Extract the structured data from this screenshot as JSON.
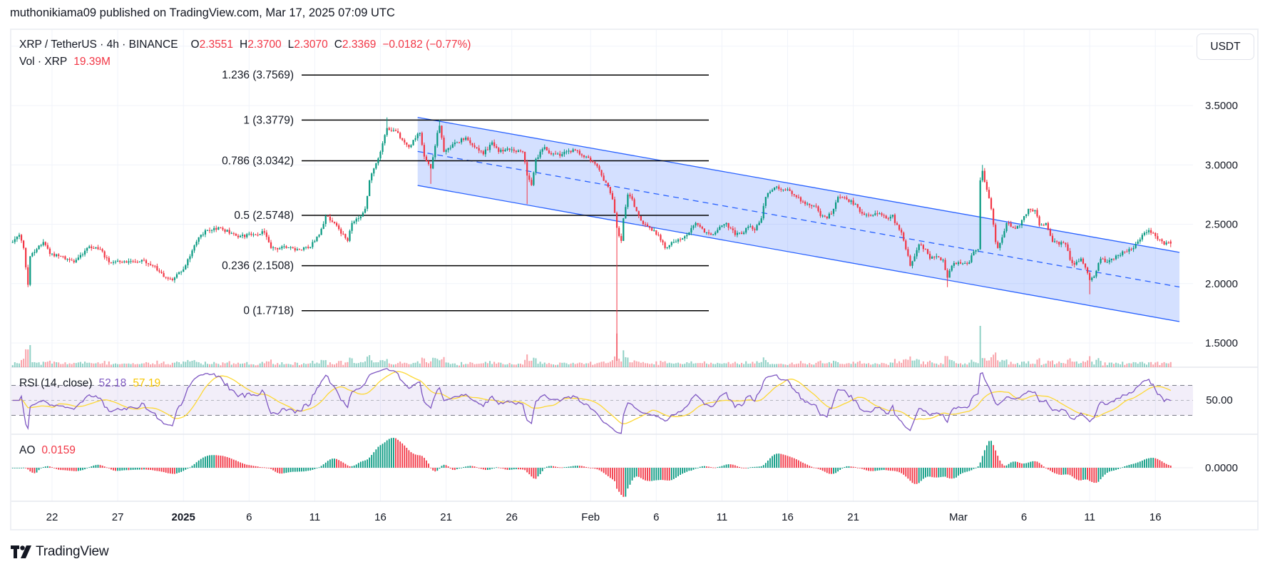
{
  "published": "muthonikiama09 published on TradingView.com, Mar 17, 2025 07:09 UTC",
  "legend": {
    "symbol": "XRP / TetherUS · 4h · BINANCE",
    "o_label": "O",
    "o": "2.3551",
    "h_label": "H",
    "h": "2.3700",
    "l_label": "L",
    "l": "2.3070",
    "c_label": "C",
    "c": "2.3369",
    "change": "−0.0182 (−0.77%)",
    "vol_label": "Vol · XRP",
    "vol": "19.39M"
  },
  "currency_button": "USDT",
  "rsi": {
    "label": "RSI (14, close)",
    "value": "52.18",
    "ma_value": "57.19",
    "axis_label": "50.00"
  },
  "ao": {
    "label": "AO",
    "value": "0.0159",
    "axis_label": "0.0000"
  },
  "footer": {
    "brand": "TradingView"
  },
  "colors": {
    "up": "#089981",
    "down": "#f23645",
    "channel": "#2962ff",
    "rsi": "#7e57c2",
    "rsi_ma": "#fdd835",
    "text": "#131722",
    "grid": "#f0f3fa"
  },
  "chart_data": {
    "type": "candlestick",
    "interval": "4h",
    "scale": "linear",
    "grid": true,
    "price_ticks": [
      {
        "label": "3.5000",
        "value": 3.5
      },
      {
        "label": "3.0000",
        "value": 3.0
      },
      {
        "label": "2.5000",
        "value": 2.5
      },
      {
        "label": "2.0000",
        "value": 2.0
      },
      {
        "label": "1.5000",
        "value": 1.5
      }
    ],
    "time_ticks": [
      {
        "label": "22",
        "date": "2024-12-22"
      },
      {
        "label": "27",
        "date": "2024-12-27"
      },
      {
        "label": "2025",
        "date": "2025-01-01",
        "emphasis": true
      },
      {
        "label": "6",
        "date": "2025-01-06"
      },
      {
        "label": "11",
        "date": "2025-01-11"
      },
      {
        "label": "16",
        "date": "2025-01-16"
      },
      {
        "label": "21",
        "date": "2025-01-21"
      },
      {
        "label": "26",
        "date": "2025-01-26"
      },
      {
        "label": "Feb",
        "date": "2025-02-01"
      },
      {
        "label": "6",
        "date": "2025-02-06"
      },
      {
        "label": "11",
        "date": "2025-02-11"
      },
      {
        "label": "16",
        "date": "2025-02-16"
      },
      {
        "label": "21",
        "date": "2025-02-21"
      },
      {
        "label": "Mar",
        "date": "2025-03-01"
      },
      {
        "label": "6",
        "date": "2025-03-06"
      },
      {
        "label": "11",
        "date": "2025-03-11"
      },
      {
        "label": "16",
        "date": "2025-03-16"
      }
    ],
    "close_path": [
      [
        "2024-12-19 00:00",
        2.35
      ],
      [
        "2024-12-19 12:00",
        2.41
      ],
      [
        "2024-12-19 20:00",
        2.3
      ],
      [
        "2024-12-20 04:00",
        1.99
      ],
      [
        "2024-12-20 08:00",
        2.23
      ],
      [
        "2024-12-20 20:00",
        2.29
      ],
      [
        "2024-12-21 08:00",
        2.35
      ],
      [
        "2024-12-21 20:00",
        2.25
      ],
      [
        "2024-12-22 20:00",
        2.23
      ],
      [
        "2024-12-23 16:00",
        2.18
      ],
      [
        "2024-12-24 16:00",
        2.3
      ],
      [
        "2024-12-25 16:00",
        2.29
      ],
      [
        "2024-12-26 08:00",
        2.18
      ],
      [
        "2024-12-27 08:00",
        2.18
      ],
      [
        "2024-12-28 20:00",
        2.2
      ],
      [
        "2024-12-29 16:00",
        2.15
      ],
      [
        "2024-12-30 16:00",
        2.05
      ],
      [
        "2024-12-31 04:00",
        2.03
      ],
      [
        "2025-01-01 00:00",
        2.12
      ],
      [
        "2025-01-01 12:00",
        2.23
      ],
      [
        "2025-01-02 04:00",
        2.39
      ],
      [
        "2025-01-02 20:00",
        2.45
      ],
      [
        "2025-01-03 20:00",
        2.47
      ],
      [
        "2025-01-05 04:00",
        2.39
      ],
      [
        "2025-01-06 04:00",
        2.41
      ],
      [
        "2025-01-07 04:00",
        2.43
      ],
      [
        "2025-01-07 16:00",
        2.3
      ],
      [
        "2025-01-08 20:00",
        2.3
      ],
      [
        "2025-01-09 16:00",
        2.29
      ],
      [
        "2025-01-10 12:00",
        2.3
      ],
      [
        "2025-01-11 08:00",
        2.41
      ],
      [
        "2025-01-11 20:00",
        2.57
      ],
      [
        "2025-01-12 12:00",
        2.51
      ],
      [
        "2025-01-13 12:00",
        2.36
      ],
      [
        "2025-01-13 20:00",
        2.51
      ],
      [
        "2025-01-14 08:00",
        2.55
      ],
      [
        "2025-01-14 20:00",
        2.63
      ],
      [
        "2025-01-15 04:00",
        2.87
      ],
      [
        "2025-01-15 12:00",
        2.97
      ],
      [
        "2025-01-16 00:00",
        3.11
      ],
      [
        "2025-01-16 12:00",
        3.31
      ],
      [
        "2025-01-16 20:00",
        3.29
      ],
      [
        "2025-01-17 08:00",
        3.27
      ],
      [
        "2025-01-17 16:00",
        3.21
      ],
      [
        "2025-01-18 04:00",
        3.15
      ],
      [
        "2025-01-18 12:00",
        3.21
      ],
      [
        "2025-01-19 00:00",
        3.27
      ],
      [
        "2025-01-19 08:00",
        3.07
      ],
      [
        "2025-01-19 20:00",
        2.97
      ],
      [
        "2025-01-20 08:00",
        3.27
      ],
      [
        "2025-01-20 12:00",
        3.33
      ],
      [
        "2025-01-20 20:00",
        3.11
      ],
      [
        "2025-01-21 20:00",
        3.19
      ],
      [
        "2025-01-22 12:00",
        3.23
      ],
      [
        "2025-01-23 04:00",
        3.15
      ],
      [
        "2025-01-23 20:00",
        3.09
      ],
      [
        "2025-01-24 12:00",
        3.19
      ],
      [
        "2025-01-25 00:00",
        3.11
      ],
      [
        "2025-01-26 00:00",
        3.13
      ],
      [
        "2025-01-26 20:00",
        3.11
      ],
      [
        "2025-01-27 04:00",
        2.91
      ],
      [
        "2025-01-27 12:00",
        2.83
      ],
      [
        "2025-01-27 20:00",
        3.05
      ],
      [
        "2025-01-28 12:00",
        3.15
      ],
      [
        "2025-01-29 00:00",
        3.09
      ],
      [
        "2025-01-29 20:00",
        3.09
      ],
      [
        "2025-01-30 16:00",
        3.13
      ],
      [
        "2025-01-31 16:00",
        3.07
      ],
      [
        "2025-02-01 08:00",
        3.01
      ],
      [
        "2025-02-01 20:00",
        2.91
      ],
      [
        "2025-02-02 04:00",
        2.85
      ],
      [
        "2025-02-02 16:00",
        2.71
      ],
      [
        "2025-02-03 00:00",
        2.47
      ],
      [
        "2025-02-03 08:00",
        2.36
      ],
      [
        "2025-02-03 12:00",
        2.55
      ],
      [
        "2025-02-03 20:00",
        2.75
      ],
      [
        "2025-02-04 04:00",
        2.71
      ],
      [
        "2025-02-04 12:00",
        2.61
      ],
      [
        "2025-02-04 20:00",
        2.53
      ],
      [
        "2025-02-05 12:00",
        2.47
      ],
      [
        "2025-02-06 04:00",
        2.41
      ],
      [
        "2025-02-06 16:00",
        2.3
      ],
      [
        "2025-02-07 08:00",
        2.35
      ],
      [
        "2025-02-08 08:00",
        2.41
      ],
      [
        "2025-02-09 00:00",
        2.51
      ],
      [
        "2025-02-09 16:00",
        2.43
      ],
      [
        "2025-02-10 04:00",
        2.41
      ],
      [
        "2025-02-11 00:00",
        2.49
      ],
      [
        "2025-02-11 08:00",
        2.51
      ],
      [
        "2025-02-12 00:00",
        2.41
      ],
      [
        "2025-02-12 16:00",
        2.43
      ],
      [
        "2025-02-13 00:00",
        2.48
      ],
      [
        "2025-02-13 12:00",
        2.45
      ],
      [
        "2025-02-14 00:00",
        2.55
      ],
      [
        "2025-02-14 08:00",
        2.73
      ],
      [
        "2025-02-15 00:00",
        2.81
      ],
      [
        "2025-02-15 12:00",
        2.79
      ],
      [
        "2025-02-16 04:00",
        2.78
      ],
      [
        "2025-02-16 16:00",
        2.73
      ],
      [
        "2025-02-17 08:00",
        2.67
      ],
      [
        "2025-02-18 04:00",
        2.65
      ],
      [
        "2025-02-18 12:00",
        2.57
      ],
      [
        "2025-02-19 00:00",
        2.55
      ],
      [
        "2025-02-19 12:00",
        2.63
      ],
      [
        "2025-02-19 20:00",
        2.73
      ],
      [
        "2025-02-20 12:00",
        2.71
      ],
      [
        "2025-02-21 04:00",
        2.67
      ],
      [
        "2025-02-21 16:00",
        2.59
      ],
      [
        "2025-02-22 00:00",
        2.58
      ],
      [
        "2025-02-22 20:00",
        2.59
      ],
      [
        "2025-02-23 12:00",
        2.55
      ],
      [
        "2025-02-24 00:00",
        2.58
      ],
      [
        "2025-02-24 04:00",
        2.51
      ],
      [
        "2025-02-24 16:00",
        2.43
      ],
      [
        "2025-02-25 00:00",
        2.29
      ],
      [
        "2025-02-25 08:00",
        2.15
      ],
      [
        "2025-02-25 16:00",
        2.23
      ],
      [
        "2025-02-26 00:00",
        2.33
      ],
      [
        "2025-02-26 12:00",
        2.29
      ],
      [
        "2025-02-26 20:00",
        2.21
      ],
      [
        "2025-02-27 08:00",
        2.23
      ],
      [
        "2025-02-27 20:00",
        2.2
      ],
      [
        "2025-02-28 04:00",
        2.05
      ],
      [
        "2025-02-28 12:00",
        2.15
      ],
      [
        "2025-03-01 00:00",
        2.18
      ],
      [
        "2025-03-01 08:00",
        2.17
      ],
      [
        "2025-03-01 20:00",
        2.18
      ],
      [
        "2025-03-02 04:00",
        2.27
      ],
      [
        "2025-03-02 12:00",
        2.29
      ],
      [
        "2025-03-02 16:00",
        2.87
      ],
      [
        "2025-03-02 20:00",
        2.95
      ],
      [
        "2025-03-03 04:00",
        2.79
      ],
      [
        "2025-03-03 12:00",
        2.63
      ],
      [
        "2025-03-03 20:00",
        2.35
      ],
      [
        "2025-03-04 00:00",
        2.3
      ],
      [
        "2025-03-04 08:00",
        2.39
      ],
      [
        "2025-03-04 16:00",
        2.51
      ],
      [
        "2025-03-05 04:00",
        2.47
      ],
      [
        "2025-03-05 16:00",
        2.49
      ],
      [
        "2025-03-06 08:00",
        2.63
      ],
      [
        "2025-03-06 20:00",
        2.62
      ],
      [
        "2025-03-07 04:00",
        2.49
      ],
      [
        "2025-03-07 16:00",
        2.51
      ],
      [
        "2025-03-08 04:00",
        2.35
      ],
      [
        "2025-03-09 04:00",
        2.33
      ],
      [
        "2025-03-09 12:00",
        2.2
      ],
      [
        "2025-03-09 20:00",
        2.16
      ],
      [
        "2025-03-10 08:00",
        2.21
      ],
      [
        "2025-03-10 20:00",
        2.09
      ],
      [
        "2025-03-11 00:00",
        2.03
      ],
      [
        "2025-03-11 08:00",
        2.06
      ],
      [
        "2025-03-11 20:00",
        2.21
      ],
      [
        "2025-03-12 04:00",
        2.18
      ],
      [
        "2025-03-12 16:00",
        2.21
      ],
      [
        "2025-03-13 04:00",
        2.24
      ],
      [
        "2025-03-13 16:00",
        2.27
      ],
      [
        "2025-03-14 08:00",
        2.3
      ],
      [
        "2025-03-15 00:00",
        2.41
      ],
      [
        "2025-03-15 12:00",
        2.45
      ],
      [
        "2025-03-16 00:00",
        2.4
      ],
      [
        "2025-03-16 16:00",
        2.33
      ],
      [
        "2025-03-17 04:00",
        2.3369
      ]
    ],
    "wick_extremes": [
      {
        "date": "2024-12-20 04:00",
        "low": 1.97
      },
      {
        "date": "2025-01-16 12:00",
        "high": 3.4
      },
      {
        "date": "2025-01-19 20:00",
        "low": 2.84
      },
      {
        "date": "2025-01-20 12:00",
        "high": 3.38
      },
      {
        "date": "2025-01-27 04:00",
        "low": 2.67
      },
      {
        "date": "2025-02-03 00:00",
        "low": 1.35
      },
      {
        "date": "2025-02-28 04:00",
        "low": 1.97
      },
      {
        "date": "2025-03-02 20:00",
        "high": 3.0
      },
      {
        "date": "2025-03-11 00:00",
        "low": 1.91
      }
    ],
    "last_bar": {
      "date": "2025-03-17 04:00",
      "open": 2.3551,
      "high": 2.37,
      "low": 2.307,
      "close": 2.3369
    },
    "fib_levels": [
      {
        "label": "1.236 (3.7569)",
        "price": 3.7569
      },
      {
        "label": "1 (3.3779)",
        "price": 3.3779
      },
      {
        "label": "0.786 (3.0342)",
        "price": 3.0342
      },
      {
        "label": "0.5 (2.5748)",
        "price": 2.5748
      },
      {
        "label": "0.236 (2.1508)",
        "price": 2.1508
      },
      {
        "label": "0 (1.7718)",
        "price": 1.7718
      }
    ],
    "channel": {
      "start": "2025-01-18 20:00",
      "end": "2025-03-17 20:00",
      "upper": [
        3.4,
        2.263
      ],
      "lower": [
        2.827,
        1.68
      ]
    },
    "rsi_bands": [
      70,
      50,
      30
    ]
  }
}
